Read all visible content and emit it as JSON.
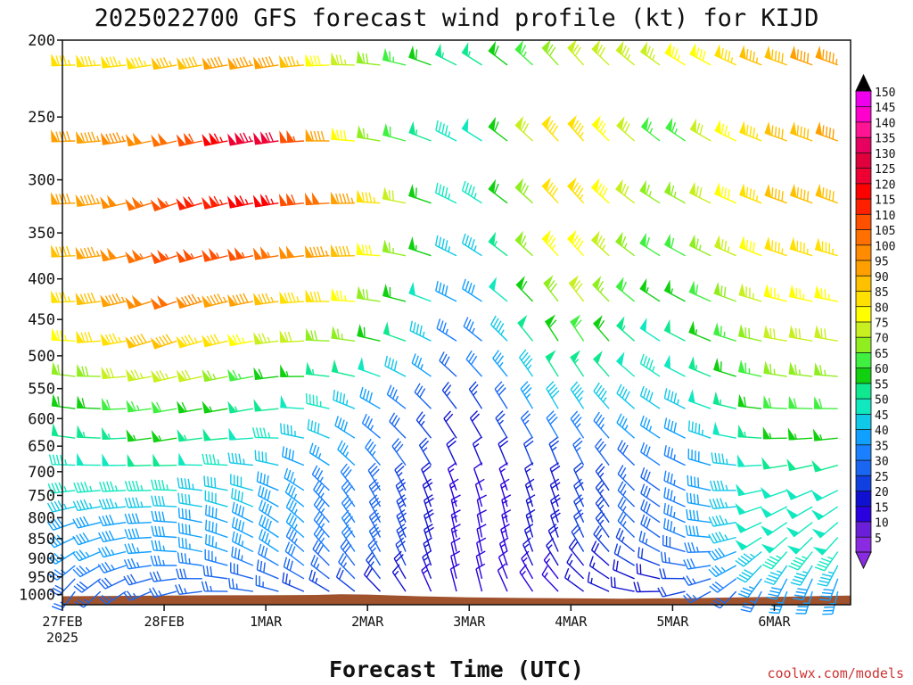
{
  "chart_data": {
    "type": "wind-barb-profile",
    "title": "2025022700 GFS forecast wind profile (kt) for KIJD",
    "xlabel": "Forecast Time (UTC)",
    "ylabel": "",
    "credit": "coolwx.com/models",
    "y_axis": {
      "scale": "pressure",
      "ylim": [
        1030,
        200
      ],
      "ticks": [
        200,
        250,
        300,
        350,
        400,
        450,
        500,
        550,
        600,
        650,
        700,
        750,
        800,
        850,
        900,
        950,
        1000
      ]
    },
    "x_axis": {
      "start": "2025-02-27 00Z",
      "end": "2025-03-06 12Z",
      "ticks": [
        {
          "label": "27FEB",
          "sub": "2025",
          "hour": 0
        },
        {
          "label": "28FEB",
          "sub": "",
          "hour": 24
        },
        {
          "label": "1MAR",
          "sub": "",
          "hour": 48
        },
        {
          "label": "2MAR",
          "sub": "",
          "hour": 72
        },
        {
          "label": "3MAR",
          "sub": "",
          "hour": 96
        },
        {
          "label": "4MAR",
          "sub": "",
          "hour": 120
        },
        {
          "label": "5MAR",
          "sub": "",
          "hour": 144
        },
        {
          "label": "6MAR",
          "sub": "",
          "hour": 168
        }
      ]
    },
    "colorbar": {
      "units": "kt",
      "levels": [
        5,
        10,
        15,
        20,
        25,
        30,
        35,
        40,
        45,
        50,
        55,
        60,
        65,
        70,
        75,
        80,
        85,
        90,
        95,
        100,
        105,
        110,
        115,
        120,
        125,
        130,
        135,
        140,
        145,
        150
      ],
      "colors": [
        "#8a2be2",
        "#6a1fd9",
        "#2a00e0",
        "#1010d0",
        "#1040e0",
        "#1a66f0",
        "#1a80ff",
        "#10a0ff",
        "#10c8e8",
        "#10e8c0",
        "#10e890",
        "#10d010",
        "#40f040",
        "#90ee20",
        "#c8f020",
        "#ffff00",
        "#ffe000",
        "#ffc000",
        "#ffa000",
        "#ff8c00",
        "#ff7000",
        "#ff5000",
        "#ff2000",
        "#ff0000",
        "#ee0033",
        "#e0003c",
        "#e80060",
        "#ff1493",
        "#ff00cc",
        "#ee00ee"
      ],
      "tick_labels": [
        "5",
        "10",
        "15",
        "20",
        "25",
        "30",
        "35",
        "40",
        "45",
        "50",
        "55",
        "60",
        "65",
        "70",
        "75",
        "80",
        "85",
        "90",
        "95",
        "100",
        "105",
        "110",
        "115",
        "120",
        "125",
        "130",
        "135",
        "140",
        "145",
        "150"
      ]
    },
    "surface_pressure": [
      [
        0,
        1005
      ],
      [
        12,
        1004
      ],
      [
        24,
        1003
      ],
      [
        36,
        1002
      ],
      [
        48,
        1002
      ],
      [
        60,
        1001
      ],
      [
        66,
        999
      ],
      [
        72,
        1000
      ],
      [
        84,
        1005
      ],
      [
        96,
        1008
      ],
      [
        108,
        1010
      ],
      [
        120,
        1011
      ],
      [
        132,
        1012
      ],
      [
        144,
        1011
      ],
      [
        156,
        1009
      ],
      [
        168,
        1007
      ],
      [
        180,
        1004
      ],
      [
        186,
        1003
      ]
    ],
    "wind_profile": {
      "levels": [
        200,
        250,
        300,
        350,
        400,
        450,
        500,
        550,
        600,
        650,
        700,
        750,
        800,
        850,
        900,
        950,
        1000
      ],
      "times": [
        0,
        24,
        48,
        72,
        96,
        120,
        144,
        168,
        186
      ],
      "speed_kt": [
        [
          80,
          80,
          80,
          75,
          55,
          65,
          80,
          90,
          95
        ],
        [
          90,
          95,
          130,
          60,
          45,
          85,
          60,
          85,
          95
        ],
        [
          90,
          105,
          125,
          90,
          40,
          90,
          65,
          90,
          90
        ],
        [
          85,
          105,
          110,
          90,
          40,
          85,
          60,
          85,
          85
        ],
        [
          85,
          105,
          100,
          80,
          35,
          80,
          55,
          80,
          80
        ],
        [
          80,
          100,
          80,
          70,
          30,
          70,
          50,
          75,
          75
        ],
        [
          70,
          85,
          70,
          60,
          30,
          60,
          45,
          70,
          70
        ],
        [
          60,
          70,
          55,
          45,
          25,
          50,
          45,
          65,
          65
        ],
        [
          55,
          60,
          50,
          40,
          20,
          40,
          40,
          60,
          60
        ],
        [
          50,
          55,
          45,
          35,
          15,
          30,
          35,
          55,
          55
        ],
        [
          45,
          50,
          40,
          35,
          15,
          25,
          30,
          50,
          50
        ],
        [
          45,
          45,
          40,
          30,
          10,
          20,
          30,
          50,
          50
        ],
        [
          40,
          40,
          40,
          30,
          10,
          20,
          30,
          50,
          50
        ],
        [
          40,
          40,
          40,
          30,
          10,
          20,
          30,
          50,
          50
        ],
        [
          35,
          35,
          35,
          30,
          10,
          20,
          25,
          45,
          45
        ],
        [
          30,
          30,
          30,
          25,
          10,
          15,
          20,
          40,
          40
        ],
        [
          25,
          25,
          25,
          20,
          10,
          15,
          20,
          35,
          35
        ]
      ],
      "direction_deg": [
        [
          270,
          260,
          260,
          270,
          300,
          320,
          300,
          290,
          290
        ],
        [
          270,
          260,
          260,
          280,
          300,
          320,
          310,
          290,
          290
        ],
        [
          270,
          250,
          260,
          270,
          300,
          320,
          300,
          290,
          290
        ],
        [
          270,
          250,
          260,
          270,
          300,
          320,
          300,
          290,
          290
        ],
        [
          270,
          250,
          260,
          270,
          300,
          320,
          300,
          290,
          280
        ],
        [
          270,
          250,
          260,
          280,
          300,
          330,
          300,
          280,
          280
        ],
        [
          280,
          250,
          260,
          280,
          310,
          330,
          300,
          280,
          280
        ],
        [
          280,
          260,
          260,
          290,
          320,
          330,
          300,
          280,
          270
        ],
        [
          280,
          260,
          260,
          300,
          330,
          330,
          300,
          270,
          270
        ],
        [
          280,
          260,
          270,
          310,
          330,
          330,
          300,
          270,
          260
        ],
        [
          270,
          270,
          280,
          320,
          340,
          340,
          300,
          260,
          250
        ],
        [
          260,
          270,
          290,
          330,
          340,
          340,
          300,
          250,
          240
        ],
        [
          250,
          270,
          300,
          330,
          350,
          340,
          300,
          240,
          230
        ],
        [
          240,
          270,
          300,
          330,
          350,
          340,
          300,
          230,
          220
        ],
        [
          230,
          270,
          300,
          330,
          350,
          330,
          290,
          220,
          210
        ],
        [
          220,
          260,
          290,
          320,
          350,
          320,
          280,
          210,
          200
        ],
        [
          210,
          250,
          280,
          310,
          350,
          310,
          260,
          200,
          190
        ]
      ]
    }
  }
}
